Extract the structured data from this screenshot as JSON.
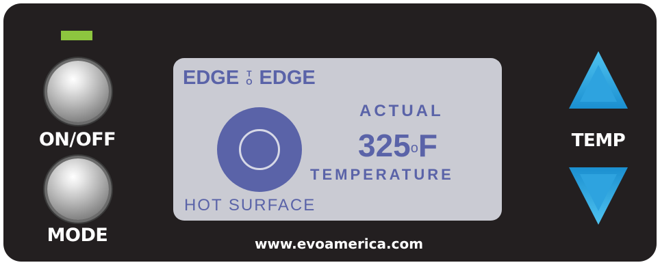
{
  "controls": {
    "onoff_label": "ON/OFF",
    "mode_label": "MODE",
    "temp_label": "TEMP"
  },
  "display": {
    "brand_left": "EDGE",
    "brand_to_top": "T",
    "brand_to_bottom": "O",
    "brand_right": "EDGE",
    "actual_label": "ACTUAL",
    "temperature_value": "325",
    "temperature_degree": "o",
    "temperature_unit": "F",
    "temperature_label": "TEMPERATURE",
    "hot_surface_label": "HOT SURFACE"
  },
  "footer": {
    "website": "www.evoamerica.com"
  },
  "colors": {
    "panel": "#231f20",
    "lcd_background": "#cacbd3",
    "lcd_text": "#5a63a8",
    "power_led": "#8dc63f",
    "arrow_blue": "#27aae1"
  },
  "icons": {
    "power_indicator": "power-led-icon",
    "surface": "hot-surface-icon",
    "up": "triangle-up-icon",
    "down": "triangle-down-icon"
  }
}
